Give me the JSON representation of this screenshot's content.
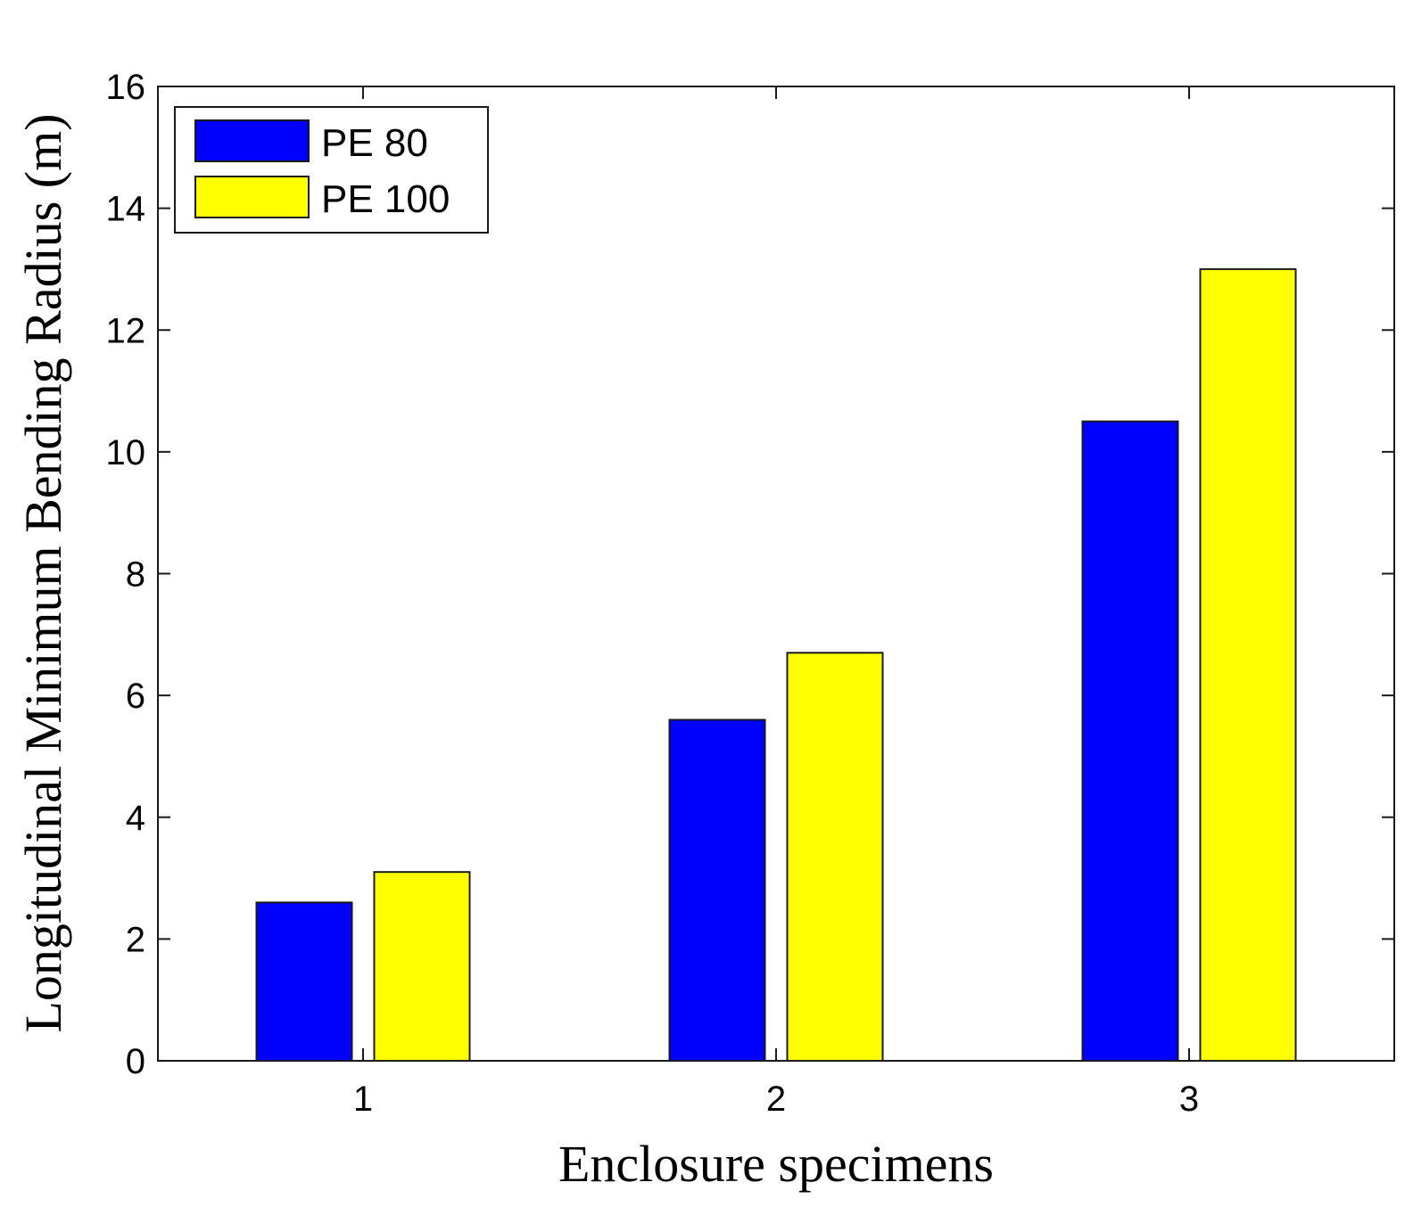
{
  "chart_data": {
    "type": "bar",
    "title": "",
    "xlabel": "Enclosure specimens",
    "ylabel": "Longitudinal Minimum Bending Radius (m)",
    "categories": [
      "1",
      "2",
      "3"
    ],
    "series": [
      {
        "name": "PE 80",
        "color": "#0000ff",
        "values": [
          2.6,
          5.6,
          10.5
        ]
      },
      {
        "name": "PE 100",
        "color": "#ffff00",
        "values": [
          3.1,
          6.7,
          13.0
        ]
      }
    ],
    "ylim": [
      0,
      16
    ],
    "yticks": [
      0,
      2,
      4,
      6,
      8,
      10,
      12,
      14,
      16
    ],
    "grid": false,
    "legend_position": "top-left"
  }
}
